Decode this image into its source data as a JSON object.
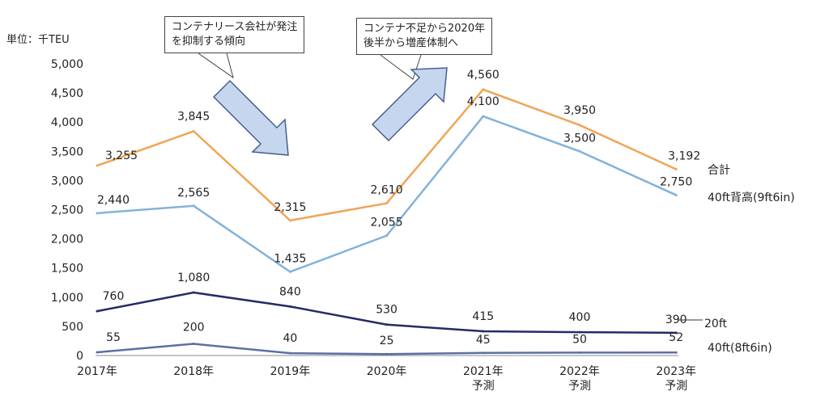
{
  "chart_data": {
    "type": "line",
    "unit_label": "単位：千TEU",
    "categories": [
      "2017年",
      "2018年",
      "2019年",
      "2020年",
      "2021年\n予測",
      "2022年\n予測",
      "2023年\n予測"
    ],
    "ylim": [
      0,
      5000
    ],
    "yticks": [
      "0",
      "500",
      "1,000",
      "1,500",
      "2,000",
      "2,500",
      "3,000",
      "3,500",
      "4,000",
      "4,500",
      "5,000"
    ],
    "series": [
      {
        "name": "合計",
        "color": "#f0a555",
        "values": [
          3255,
          3845,
          2315,
          2610,
          4560,
          3950,
          3192
        ],
        "labels": [
          "3,255",
          "3,845",
          "2,315",
          "2,610",
          "4,560",
          "3,950",
          "3,192"
        ]
      },
      {
        "name": "40ft背高(9ft6in)",
        "color": "#82b2da",
        "values": [
          2440,
          2565,
          1435,
          2055,
          4100,
          3500,
          2750
        ],
        "labels": [
          "2,440",
          "2,565",
          "1,435",
          "2,055",
          "4,100",
          "3,500",
          "2,750"
        ]
      },
      {
        "name": "20ft",
        "color": "#262a66",
        "values": [
          760,
          1080,
          840,
          530,
          415,
          400,
          390
        ],
        "labels": [
          "760",
          "1,080",
          "840",
          "530",
          "415",
          "400",
          "390"
        ]
      },
      {
        "name": "40ft(8ft6in)",
        "color": "#5b6fa3",
        "values": [
          55,
          200,
          40,
          25,
          45,
          50,
          52
        ],
        "labels": [
          "55",
          "200",
          "40",
          "25",
          "45",
          "50",
          "52"
        ]
      }
    ],
    "annotations": [
      "コンテナリース会社が発注\nを抑制する傾向",
      "コンテナ不足から2020年\n後半から増産体制へ"
    ]
  }
}
